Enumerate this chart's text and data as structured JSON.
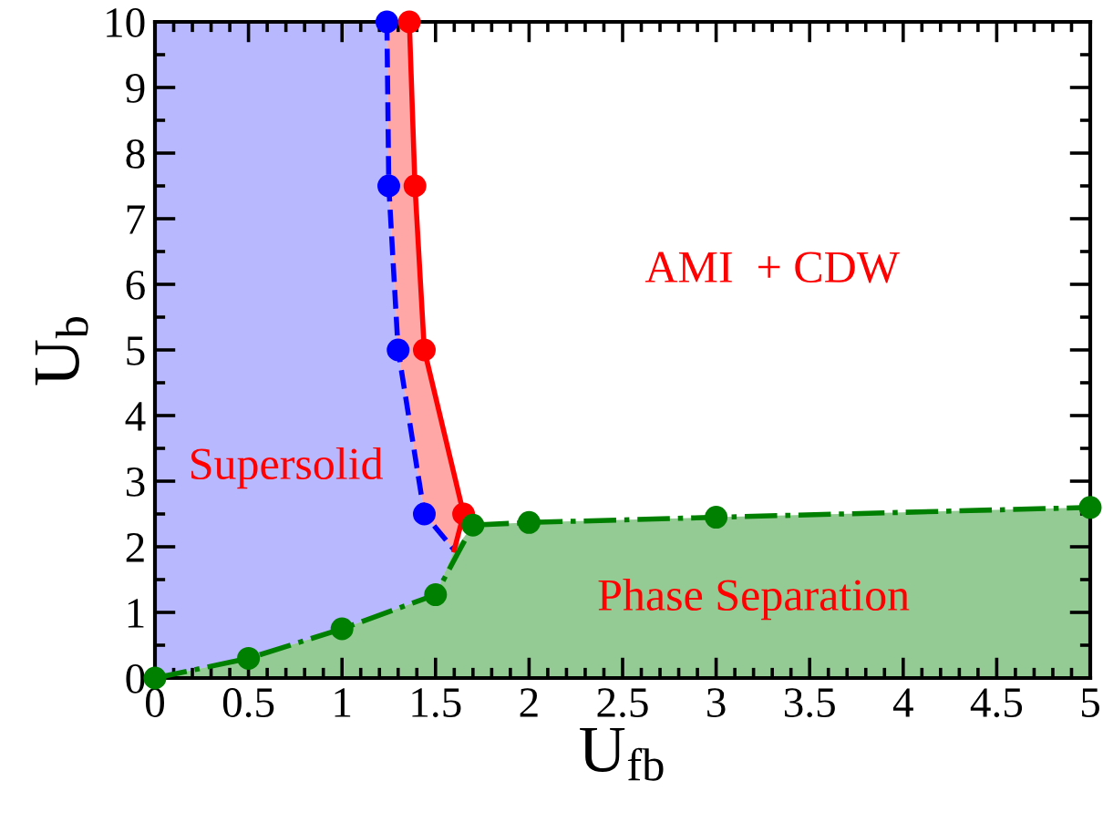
{
  "chart_data": {
    "type": "line",
    "xlabel": "U$_{fb}$",
    "ylabel": "U$_{b}$",
    "series": [
      {
        "color": "#0000ff",
        "line_style": "dashed",
        "x": [
          1.24,
          1.25,
          1.3,
          1.44,
          1.6
        ],
        "values": [
          10,
          7.5,
          5,
          2.5,
          1.95
        ]
      },
      {
        "color": "#ff0000",
        "line_style": "solid",
        "x": [
          1.36,
          1.39,
          1.44,
          1.65,
          1.6
        ],
        "values": [
          10,
          7.5,
          5,
          2.5,
          1.95
        ]
      },
      {
        "color": "#008000",
        "line_style": "dashdot",
        "x": [
          0,
          0.5,
          1,
          1.5,
          1.7,
          2,
          3,
          5
        ],
        "values": [
          0,
          0.3,
          0.75,
          1.27,
          2.33,
          2.37,
          2.45,
          2.6
        ]
      }
    ],
    "annotations": [
      "AMI  + CDW",
      "Supersolid",
      "Phase Separation"
    ],
    "xlim": [
      0,
      5
    ],
    "ylim": [
      0,
      10
    ],
    "xticks": [
      0,
      0.5,
      1,
      1.5,
      2,
      2.5,
      3,
      3.5,
      4,
      4.5,
      5
    ],
    "yticks": [
      0,
      1,
      2,
      3,
      4,
      5,
      6,
      7,
      8,
      9,
      10
    ],
    "marker": "circle",
    "grid": false,
    "legend": false
  }
}
